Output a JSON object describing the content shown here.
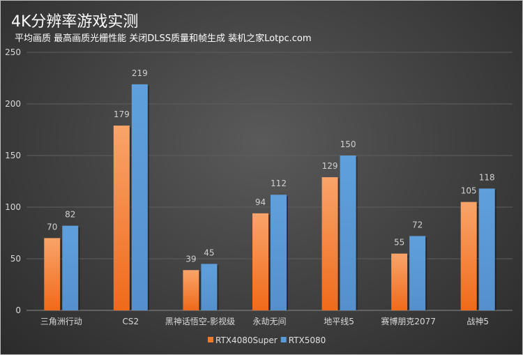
{
  "chart_data": {
    "type": "bar",
    "title": "4K分辨率游戏实测",
    "subtitle": "平均画质 最高画质光栅性能 关闭DLSS质量和帧生成 装机之家Lotpc.com",
    "categories": [
      "三角洲行动",
      "CS2",
      "黑神话悟空-影视级",
      "永劫无间",
      "地平线5",
      "赛博朋克2077",
      "战神5"
    ],
    "series": [
      {
        "name": "RTX4080Super",
        "color": "#f07a2a",
        "values": [
          70,
          179,
          39,
          94,
          129,
          55,
          105
        ]
      },
      {
        "name": "RTX5080",
        "color": "#5b9bd5",
        "values": [
          82,
          219,
          45,
          112,
          150,
          72,
          118
        ]
      }
    ],
    "yticks": [
      0,
      50,
      100,
      150,
      200,
      250
    ],
    "ylim": [
      0,
      250
    ],
    "xlabel": "",
    "ylabel": "",
    "grid": true,
    "legend": "bottom"
  }
}
